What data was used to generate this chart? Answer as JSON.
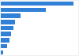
{
  "values": [
    490,
    300,
    130,
    95,
    85,
    70,
    60,
    45,
    15
  ],
  "bar_color": "#2f80d6",
  "background_color": "#f0f0f0",
  "plot_bg_color": "#ffffff",
  "xlim": [
    0,
    520
  ],
  "bar_height": 0.72,
  "figsize": [
    1.0,
    0.71
  ],
  "dpi": 100
}
